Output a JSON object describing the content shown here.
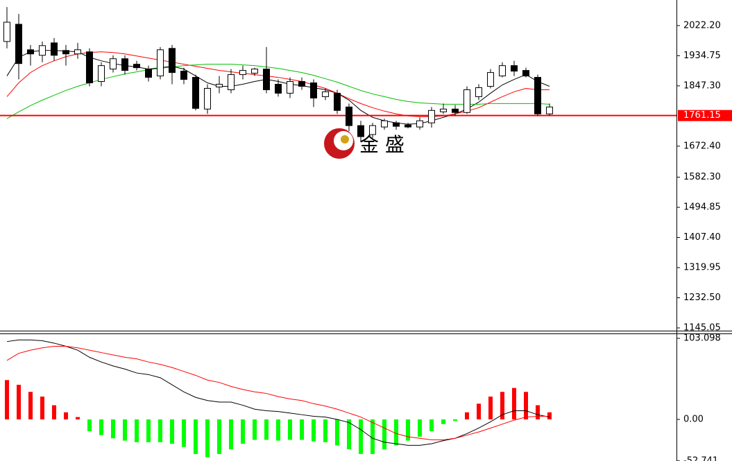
{
  "chart_data": [
    {
      "type": "candlestick",
      "open": [
        1976,
        2026,
        1952,
        1936,
        1972,
        1950,
        1940,
        1946,
        1860,
        1896,
        1926,
        1910,
        1896,
        1876,
        1956,
        1890,
        1872,
        1780,
        1844,
        1836,
        1880,
        1884,
        1896,
        1852,
        1826,
        1860,
        1856,
        1816,
        1826,
        1786,
        1732,
        1706,
        1728,
        1740,
        1734,
        1728,
        1740,
        1772,
        1780,
        1770,
        1816,
        1846,
        1876,
        1906,
        1892,
        1872,
        1766
      ],
      "high": [
        2076,
        2056,
        1966,
        1976,
        1986,
        1966,
        1972,
        1956,
        1916,
        1936,
        1936,
        1920,
        1906,
        1960,
        1966,
        1900,
        1880,
        1852,
        1876,
        1896,
        1906,
        1900,
        1960,
        1866,
        1872,
        1872,
        1866,
        1840,
        1836,
        1796,
        1746,
        1740,
        1752,
        1746,
        1740,
        1756,
        1786,
        1796,
        1792,
        1846,
        1852,
        1896,
        1916,
        1920,
        1900,
        1880,
        1796
      ],
      "low": [
        1956,
        1866,
        1906,
        1916,
        1920,
        1906,
        1926,
        1846,
        1846,
        1886,
        1880,
        1892,
        1860,
        1866,
        1852,
        1852,
        1776,
        1766,
        1826,
        1826,
        1866,
        1876,
        1826,
        1816,
        1812,
        1836,
        1786,
        1806,
        1766,
        1716,
        1686,
        1696,
        1720,
        1720,
        1724,
        1720,
        1726,
        1766,
        1760,
        1766,
        1806,
        1840,
        1872,
        1876,
        1872,
        1760,
        1760
      ],
      "close": [
        2032,
        1912,
        1940,
        1964,
        1936,
        1940,
        1952,
        1856,
        1906,
        1926,
        1892,
        1900,
        1872,
        1952,
        1886,
        1866,
        1782,
        1840,
        1852,
        1880,
        1892,
        1896,
        1836,
        1826,
        1860,
        1846,
        1812,
        1830,
        1776,
        1732,
        1700,
        1732,
        1746,
        1730,
        1728,
        1746,
        1776,
        1780,
        1770,
        1836,
        1842,
        1886,
        1906,
        1890,
        1876,
        1766,
        1786
      ],
      "up_color": "#ffffff",
      "down_color": "#000000",
      "overlays": [
        {
          "color": "#000000",
          "values": [
            1876,
            1930,
            1946,
            1950,
            1950,
            1948,
            1946,
            1930,
            1920,
            1912,
            1906,
            1902,
            1896,
            1900,
            1904,
            1896,
            1876,
            1856,
            1846,
            1846,
            1852,
            1860,
            1866,
            1860,
            1852,
            1848,
            1842,
            1836,
            1826,
            1806,
            1776,
            1756,
            1746,
            1740,
            1736,
            1738,
            1746,
            1756,
            1766,
            1780,
            1800,
            1826,
            1850,
            1866,
            1880,
            1860,
            1846
          ]
        },
        {
          "color": "#ff0000",
          "values": [
            1816,
            1856,
            1886,
            1906,
            1920,
            1932,
            1940,
            1944,
            1946,
            1944,
            1940,
            1934,
            1928,
            1922,
            1916,
            1910,
            1904,
            1898,
            1892,
            1888,
            1884,
            1880,
            1876,
            1872,
            1866,
            1860,
            1850,
            1840,
            1826,
            1810,
            1796,
            1784,
            1774,
            1766,
            1760,
            1758,
            1758,
            1760,
            1766,
            1774,
            1784,
            1800,
            1816,
            1830,
            1840,
            1836,
            1836
          ]
        },
        {
          "color": "#00c000",
          "values": [
            1752,
            1772,
            1790,
            1806,
            1820,
            1834,
            1846,
            1856,
            1866,
            1874,
            1882,
            1888,
            1894,
            1898,
            1902,
            1906,
            1908,
            1910,
            1910,
            1910,
            1908,
            1906,
            1902,
            1898,
            1892,
            1886,
            1878,
            1868,
            1858,
            1846,
            1834,
            1824,
            1816,
            1808,
            1802,
            1798,
            1796,
            1794,
            1794,
            1794,
            1794,
            1796,
            1796,
            1796,
            1796,
            1796,
            1794
          ]
        }
      ],
      "price_line": 1761.15,
      "price_line_color": "#ff0000",
      "watermark": "金 盛",
      "ylim": [
        1137,
        2096.4
      ],
      "yticks": [
        {
          "value": 2022.2,
          "label": "2022.20"
        },
        1934.75,
        {
          "value": 1847.3,
          "label": "1847.30"
        },
        {
          "value": 1672.4,
          "label": "1672.40"
        },
        {
          "value": 1582.3,
          "label": "1582.30"
        },
        1494.85,
        {
          "value": 1407.4,
          "label": "1407.40"
        },
        1319.95,
        {
          "value": 1232.5,
          "label": "1232.50"
        },
        1145.05
      ]
    },
    {
      "type": "macd",
      "histogram": [
        50,
        44,
        35,
        29,
        18,
        9,
        3,
        -15,
        -20,
        -24,
        -27,
        -29,
        -29,
        -29,
        -31,
        -35,
        -44,
        -48,
        -44,
        -38,
        -31,
        -26,
        -26,
        -27,
        -26,
        -26,
        -28,
        -29,
        -33,
        -38,
        -44,
        -44,
        -38,
        -33,
        -27,
        -22,
        -15,
        -6,
        -2,
        9,
        20,
        29,
        35,
        40,
        35,
        18,
        9
      ],
      "up_color": "#ff0000",
      "down_color": "#00ff00",
      "lines": [
        {
          "color": "#000000",
          "values": [
            99,
            101,
            101,
            100,
            97,
            93,
            88,
            79,
            73,
            68,
            64,
            59,
            57,
            53,
            44,
            35,
            28,
            24,
            22,
            22,
            18,
            13,
            11,
            10,
            8,
            6,
            4,
            3,
            0,
            -4,
            -13,
            -24,
            -29,
            -31,
            -33,
            -33,
            -31,
            -27,
            -24,
            -18,
            -11,
            -3,
            6,
            11,
            11,
            6,
            3
          ]
        },
        {
          "color": "#ff0000",
          "values": [
            75,
            84,
            88,
            91,
            93,
            93,
            91,
            88,
            85,
            82,
            79,
            77,
            73,
            70,
            66,
            61,
            56,
            50,
            47,
            42,
            38,
            35,
            33,
            29,
            26,
            24,
            20,
            17,
            13,
            8,
            3,
            -4,
            -11,
            -18,
            -22,
            -24,
            -26,
            -26,
            -24,
            -20,
            -16,
            -11,
            -6,
            -1,
            3,
            4,
            4
          ]
        }
      ],
      "ylim": [
        -52.9,
        109.3
      ],
      "yticks": [
        103.098,
        {
          "value": 0,
          "label": "0.00"
        },
        -52.741
      ]
    }
  ]
}
